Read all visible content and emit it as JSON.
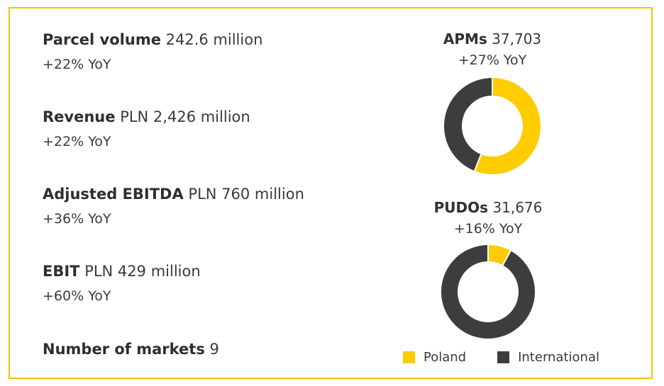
{
  "metrics": [
    {
      "label": "Parcel volume",
      "value": "242.6 million",
      "change": "+22% YoY"
    },
    {
      "label": "Revenue",
      "value": "PLN 2,426 million",
      "change": "+22% YoY"
    },
    {
      "label": "Adjusted EBITDA",
      "value": "PLN 760 million",
      "change": "+36% YoY"
    },
    {
      "label": "EBIT",
      "value": "PLN 429 million",
      "change": "+60% YoY"
    },
    {
      "label": "Number of markets",
      "value": "9",
      "change": ""
    }
  ],
  "colors": {
    "border": "#f5c400",
    "poland": "#ffcc00",
    "international": "#3d3d3d"
  },
  "chart_data": [
    {
      "type": "pie",
      "style": "donut",
      "title_bold": "APMs",
      "title_value": "37,703",
      "subtitle": "+27% YoY",
      "categories": [
        "Poland",
        "International"
      ],
      "values": [
        0.56,
        0.44
      ]
    },
    {
      "type": "pie",
      "style": "donut",
      "title_bold": "PUDOs",
      "title_value": "31,676",
      "subtitle": "+16% YoY",
      "categories": [
        "Poland",
        "International"
      ],
      "values": [
        0.08,
        0.92
      ]
    }
  ],
  "legend": [
    {
      "label": "Poland",
      "color": "#ffcc00"
    },
    {
      "label": "International",
      "color": "#3d3d3d"
    }
  ]
}
